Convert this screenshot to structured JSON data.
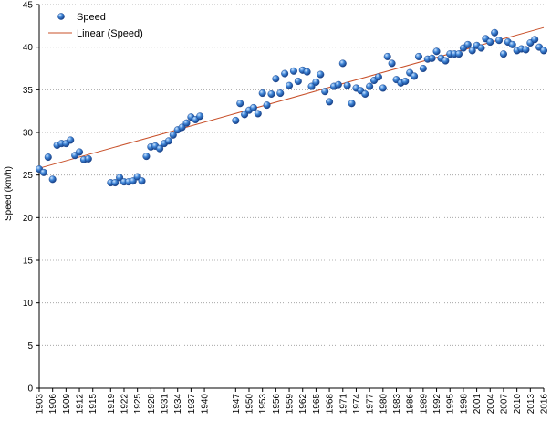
{
  "chart_data": {
    "type": "scatter",
    "title": "",
    "xlabel": "",
    "ylabel": "Speed (km/h)",
    "ylim": [
      0,
      45
    ],
    "yticks": [
      0,
      5,
      10,
      15,
      20,
      25,
      30,
      35,
      40,
      45
    ],
    "xlim": [
      1903,
      2016
    ],
    "xticks": [
      1903,
      1906,
      1909,
      1912,
      1915,
      1919,
      1922,
      1925,
      1928,
      1931,
      1934,
      1937,
      1940,
      1947,
      1950,
      1953,
      1956,
      1959,
      1962,
      1965,
      1968,
      1971,
      1974,
      1977,
      1980,
      1983,
      1986,
      1989,
      1992,
      1995,
      1998,
      2001,
      2004,
      2007,
      2010,
      2013,
      2016
    ],
    "grid": "horizontal-dotted",
    "legend_position": "top-left",
    "colors": {
      "points": "#2f6fc4",
      "trend": "#c8502a"
    },
    "series": [
      {
        "name": "Speed",
        "kind": "points",
        "points": [
          [
            1903,
            25.7
          ],
          [
            1904,
            25.3
          ],
          [
            1905,
            27.1
          ],
          [
            1906,
            24.5
          ],
          [
            1907,
            28.5
          ],
          [
            1908,
            28.7
          ],
          [
            1909,
            28.7
          ],
          [
            1910,
            29.1
          ],
          [
            1911,
            27.3
          ],
          [
            1912,
            27.7
          ],
          [
            1913,
            26.8
          ],
          [
            1914,
            26.9
          ],
          [
            1919,
            24.1
          ],
          [
            1920,
            24.1
          ],
          [
            1921,
            24.7
          ],
          [
            1922,
            24.2
          ],
          [
            1923,
            24.2
          ],
          [
            1924,
            24.3
          ],
          [
            1925,
            24.8
          ],
          [
            1926,
            24.3
          ],
          [
            1927,
            27.2
          ],
          [
            1928,
            28.3
          ],
          [
            1929,
            28.4
          ],
          [
            1930,
            28.1
          ],
          [
            1931,
            28.7
          ],
          [
            1932,
            29.0
          ],
          [
            1933,
            29.7
          ],
          [
            1934,
            30.3
          ],
          [
            1935,
            30.6
          ],
          [
            1936,
            31.1
          ],
          [
            1937,
            31.8
          ],
          [
            1938,
            31.5
          ],
          [
            1939,
            31.9
          ],
          [
            1947,
            31.4
          ],
          [
            1948,
            33.4
          ],
          [
            1949,
            32.1
          ],
          [
            1950,
            32.6
          ],
          [
            1951,
            32.9
          ],
          [
            1952,
            32.2
          ],
          [
            1953,
            34.6
          ],
          [
            1954,
            33.2
          ],
          [
            1955,
            34.5
          ],
          [
            1956,
            36.3
          ],
          [
            1957,
            34.6
          ],
          [
            1958,
            36.9
          ],
          [
            1959,
            35.5
          ],
          [
            1960,
            37.2
          ],
          [
            1961,
            36.0
          ],
          [
            1962,
            37.3
          ],
          [
            1963,
            37.1
          ],
          [
            1964,
            35.4
          ],
          [
            1965,
            35.9
          ],
          [
            1966,
            36.8
          ],
          [
            1967,
            34.8
          ],
          [
            1968,
            33.6
          ],
          [
            1969,
            35.4
          ],
          [
            1970,
            35.6
          ],
          [
            1971,
            38.1
          ],
          [
            1972,
            35.5
          ],
          [
            1973,
            33.4
          ],
          [
            1974,
            35.2
          ],
          [
            1975,
            34.9
          ],
          [
            1976,
            34.5
          ],
          [
            1977,
            35.4
          ],
          [
            1978,
            36.1
          ],
          [
            1979,
            36.5
          ],
          [
            1980,
            35.2
          ],
          [
            1981,
            38.9
          ],
          [
            1982,
            38.1
          ],
          [
            1983,
            36.2
          ],
          [
            1984,
            35.8
          ],
          [
            1985,
            36.0
          ],
          [
            1986,
            37.0
          ],
          [
            1987,
            36.6
          ],
          [
            1988,
            38.9
          ],
          [
            1989,
            37.5
          ],
          [
            1990,
            38.6
          ],
          [
            1991,
            38.7
          ],
          [
            1992,
            39.5
          ],
          [
            1993,
            38.7
          ],
          [
            1994,
            38.4
          ],
          [
            1995,
            39.2
          ],
          [
            1996,
            39.2
          ],
          [
            1997,
            39.2
          ],
          [
            1998,
            39.9
          ],
          [
            1999,
            40.3
          ],
          [
            2000,
            39.6
          ],
          [
            2001,
            40.2
          ],
          [
            2002,
            39.9
          ],
          [
            2003,
            41.0
          ],
          [
            2004,
            40.6
          ],
          [
            2005,
            41.7
          ],
          [
            2006,
            40.8
          ],
          [
            2007,
            39.2
          ],
          [
            2008,
            40.6
          ],
          [
            2009,
            40.3
          ],
          [
            2010,
            39.6
          ],
          [
            2011,
            39.8
          ],
          [
            2012,
            39.7
          ],
          [
            2013,
            40.5
          ],
          [
            2014,
            40.9
          ],
          [
            2015,
            40.0
          ],
          [
            2016,
            39.6
          ]
        ]
      },
      {
        "name": "Linear (Speed)",
        "kind": "trendline",
        "points": [
          [
            1903,
            25.8
          ],
          [
            2016,
            42.3
          ]
        ]
      }
    ]
  }
}
